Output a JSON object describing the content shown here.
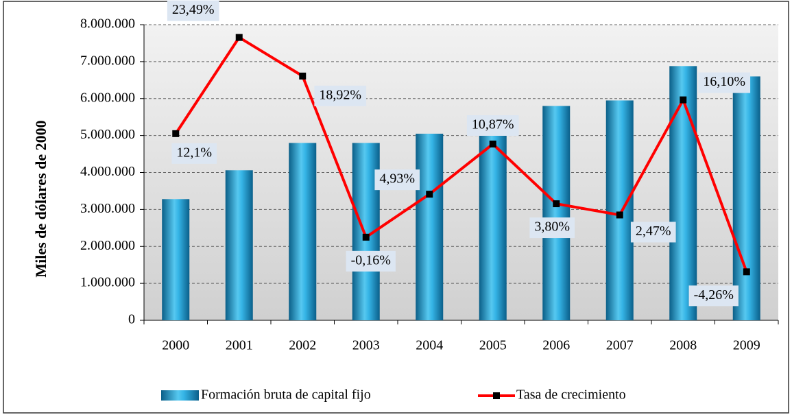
{
  "chart_data": {
    "type": "bar_line",
    "y_label": "Miles de dólares de 2000",
    "categories": [
      "2000",
      "2001",
      "2002",
      "2003",
      "2004",
      "2005",
      "2006",
      "2007",
      "2008",
      "2009"
    ],
    "series": [
      {
        "name": "Formación bruta de capital fijo",
        "type": "bar",
        "color": "#1b9fd4",
        "values": [
          3280000,
          4060000,
          4800000,
          4800000,
          5050000,
          5050000,
          5800000,
          5950000,
          6880000,
          6600000
        ]
      },
      {
        "name": "Tasa de crecimiento",
        "type": "line",
        "axis": "y2",
        "color": "#ff0000",
        "marker_color": "#000000",
        "values": [
          12.1,
          23.49,
          18.92,
          -0.16,
          4.93,
          10.87,
          3.8,
          2.47,
          16.1,
          -4.26
        ],
        "value_labels": [
          "12,1%",
          "23,49%",
          "18,92%",
          "-0,16%",
          "4,93%",
          "10,87%",
          "3,80%",
          "2,47%",
          "16,10%",
          "-4,26%"
        ]
      }
    ],
    "ylim": [
      0,
      8000000
    ],
    "yticks": [
      {
        "value": 0,
        "label": "0"
      },
      {
        "value": 1000000,
        "label": "1.000.000"
      },
      {
        "value": 2000000,
        "label": "2.000.000"
      },
      {
        "value": 3000000,
        "label": "3.000.000"
      },
      {
        "value": 4000000,
        "label": "4.000.000"
      },
      {
        "value": 5000000,
        "label": "5.000.000"
      },
      {
        "value": 6000000,
        "label": "6.000.000"
      },
      {
        "value": 7000000,
        "label": "7.000.000"
      },
      {
        "value": 8000000,
        "label": "8.000.000"
      }
    ],
    "y2lim": [
      -10,
      25
    ],
    "grid": true
  }
}
